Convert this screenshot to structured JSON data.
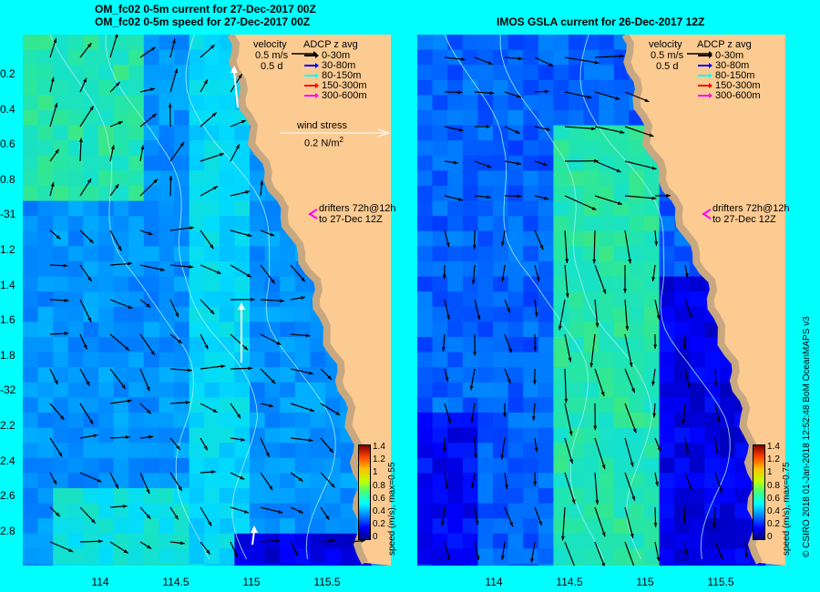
{
  "left_panel": {
    "title_line1": "OM_fc02 0-5m current for 27-Dec-2017 00Z",
    "title_line2": "OM_fc02 0-5m speed for 27-Dec-2017 00Z",
    "velocity_label": "velocity",
    "velocity_scale": "0.5 m/s",
    "velocity_days": "0.5 d",
    "wind_title": "wind stress",
    "wind_value": "0.2 N/m",
    "wind_exp": "2",
    "drifters_line1": "drifters 72h@12h",
    "drifters_line2": "to 27-Dec 12Z",
    "speed_caption": "speed (m/s), max=0.55"
  },
  "right_panel": {
    "title": "IMOS GSLA current for 26-Dec-2017 12Z",
    "velocity_label": "velocity",
    "velocity_scale": "0.5 m/s",
    "velocity_days": "0.5 d",
    "drifters_line1": "drifters 72h@12h",
    "drifters_line2": "to 27-Dec 12Z",
    "speed_caption": "speed (m/s), max=0.75"
  },
  "adcp_legend": {
    "title": "ADCP z avg",
    "items": [
      {
        "label": "0-30m",
        "color": "#000000"
      },
      {
        "label": "30-80m",
        "color": "#0000ff"
      },
      {
        "label": "80-150m",
        "color": "#00ffff"
      },
      {
        "label": "150-300m",
        "color": "#ff0000"
      },
      {
        "label": "300-600m",
        "color": "#ff00ff"
      }
    ]
  },
  "lat_labels": [
    "0.2",
    "0.4",
    "0.6",
    "0.8",
    "-31",
    "1.2",
    "1.4",
    "1.6",
    "1.8",
    "-32",
    "2.2",
    "2.4",
    "2.6",
    "2.8"
  ],
  "lon_labels_left": [
    "114",
    "114.5",
    "115",
    "115.5"
  ],
  "lon_labels_right": [
    "114",
    "114.5",
    "115",
    "115.5"
  ],
  "colorbar_ticks": [
    "1.4",
    "1.2",
    "1",
    "0.8",
    "0.6",
    "0.4",
    "0.2",
    "0"
  ],
  "credit": "© CSIRO 2018   01-Jan-2018 12:52:48 BoM OceanMAPS v3",
  "colors": {
    "land": "#fccb92",
    "coast_shelf": "#c8a880",
    "frame": "#00ffff",
    "drifter": "#ff00ff"
  }
}
